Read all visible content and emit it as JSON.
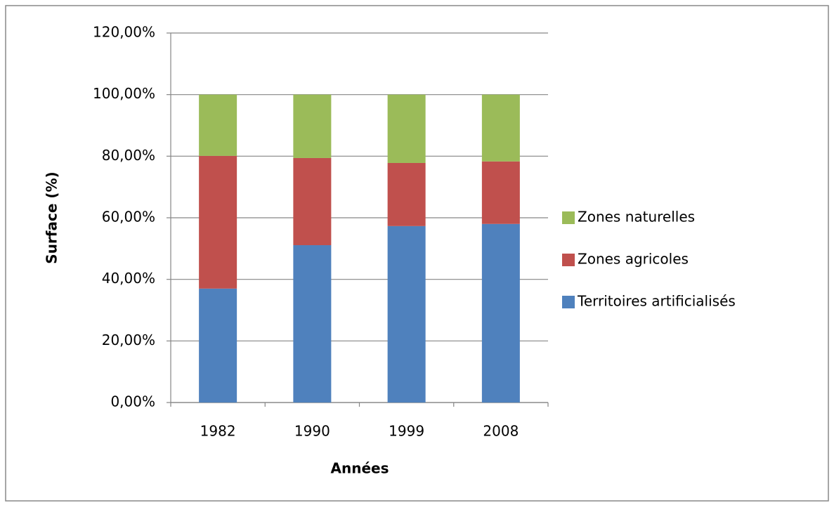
{
  "chart_data": {
    "type": "stacked_bar",
    "x_label": "Années",
    "y_label": "Surface (%)",
    "categories": [
      "1982",
      "1990",
      "1999",
      "2008"
    ],
    "series": [
      {
        "name": "Territoires artificialisés",
        "color": "#4f81bd",
        "values": [
          37.0,
          51.1,
          57.3,
          58.0
        ]
      },
      {
        "name": "Zones agricoles",
        "color": "#c0504d",
        "values": [
          43.1,
          28.3,
          20.5,
          20.3
        ]
      },
      {
        "name": "Zones naturelles",
        "color": "#9bbb59",
        "values": [
          19.9,
          20.6,
          22.2,
          21.7
        ]
      }
    ],
    "ylim": [
      0,
      120
    ],
    "yticks": [
      {
        "value": 0,
        "label": "0,00%"
      },
      {
        "value": 20,
        "label": "20,00%"
      },
      {
        "value": 40,
        "label": "40,00%"
      },
      {
        "value": 60,
        "label": "60,00%"
      },
      {
        "value": 80,
        "label": "80,00%"
      },
      {
        "value": 100,
        "label": "100,00%"
      },
      {
        "value": 120,
        "label": "120,00%"
      }
    ],
    "grid": true,
    "legend": "right"
  }
}
